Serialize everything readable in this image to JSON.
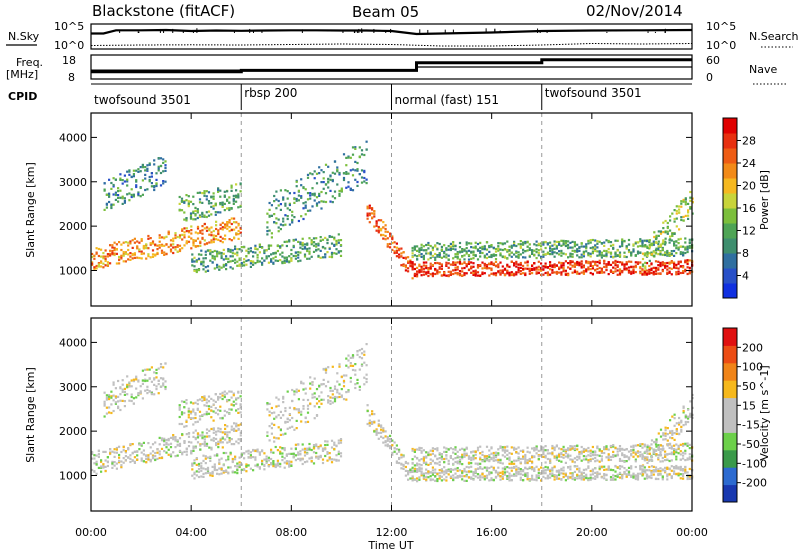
{
  "header": {
    "site": "Blackstone (fitACF)",
    "beam": "Beam 05",
    "date": "02/Nov/2014"
  },
  "panel_labels": {
    "nsky": "N.Sky",
    "nsearch": "N.Search",
    "freq_top": "Freq.",
    "freq_unit": "[MHz]",
    "nave": "Nave",
    "cpid": "CPID"
  },
  "colors": {
    "nsky_line": "#000000",
    "dash_line": "#999999"
  },
  "chart_data": [
    {
      "type": "line",
      "name": "noise-panel",
      "left_ticks": [
        "10^5",
        "10^0"
      ],
      "right_ticks": [
        "10^5",
        "10^0"
      ],
      "series": [
        {
          "name": "N.Sky",
          "x": [
            0,
            0.5,
            1,
            2,
            3,
            4,
            5,
            6,
            7,
            8,
            9,
            10,
            11,
            12,
            13,
            14,
            16,
            18,
            20,
            22,
            24
          ],
          "y": [
            0.62,
            0.62,
            0.75,
            0.75,
            0.76,
            0.72,
            0.74,
            0.73,
            0.74,
            0.75,
            0.75,
            0.74,
            0.74,
            0.72,
            0.6,
            0.62,
            0.66,
            0.72,
            0.74,
            0.75,
            0.76
          ]
        },
        {
          "name": "N.Search",
          "x": [
            0,
            2,
            4,
            6,
            8,
            10,
            12,
            14,
            16,
            18,
            20,
            22,
            24
          ],
          "y": [
            0.14,
            0.16,
            0.17,
            0.16,
            0.18,
            0.2,
            0.18,
            0.12,
            0.12,
            0.16,
            0.22,
            0.2,
            0.22
          ]
        }
      ]
    },
    {
      "type": "line",
      "name": "freq-nave-panel",
      "left_ticks": [
        "18",
        "8"
      ],
      "right_ticks": [
        "60",
        "0"
      ],
      "series": [
        {
          "name": "Freq",
          "x": [
            0,
            6,
            6,
            13,
            13,
            24
          ],
          "y": [
            0.37,
            0.37,
            0.37,
            0.37,
            0.5,
            0.5
          ]
        },
        {
          "name": "Nave",
          "x": [
            0,
            6,
            6,
            13,
            13,
            18,
            18,
            24
          ],
          "y": [
            0.3,
            0.3,
            0.36,
            0.36,
            0.68,
            0.68,
            0.8,
            0.8
          ]
        }
      ]
    },
    {
      "type": "table",
      "name": "cpid",
      "segments": [
        {
          "start": 0,
          "end": 6,
          "label": "twofsound 3501"
        },
        {
          "start": 6,
          "end": 12,
          "label": "rbsp 200"
        },
        {
          "start": 12,
          "end": 18,
          "label": "normal (fast) 151"
        },
        {
          "start": 18,
          "end": 24,
          "label": "twofsound 3501"
        }
      ]
    },
    {
      "type": "heatmap",
      "name": "power",
      "ylabel": "Slant Range [km]",
      "ylim": [
        200,
        4550
      ],
      "yticks": [
        1000,
        2000,
        3000,
        4000
      ],
      "xlim": [
        0,
        24
      ],
      "colorbar": {
        "label": "Power [dB]",
        "ticks": [
          "4",
          "8",
          "12",
          "16",
          "20",
          "24",
          "28"
        ],
        "colors": [
          "#1030e0",
          "#2850c8",
          "#2f6fa0",
          "#3e8e6e",
          "#4ea455",
          "#7cbf3c",
          "#c8d43a",
          "#f5b820",
          "#f28a18",
          "#ee5c14",
          "#e83010",
          "#e00000"
        ]
      }
    },
    {
      "type": "heatmap",
      "name": "velocity",
      "ylabel": "Slant Range [km]",
      "ylim": [
        200,
        4550
      ],
      "yticks": [
        1000,
        2000,
        3000,
        4000
      ],
      "xlim": [
        0,
        24
      ],
      "colorbar": {
        "label": "Velocity [m s^-1]",
        "ticks": [
          "200",
          "100",
          "50",
          "15",
          "-15",
          "-50",
          "-100",
          "-200"
        ],
        "colors": [
          "#1838b0",
          "#2c6ad0",
          "#3a9a4a",
          "#6cd04a",
          "#c0c0c0",
          "#c0c0c0",
          "#f6b81c",
          "#f08418",
          "#ec4c14",
          "#e01010"
        ]
      }
    }
  ],
  "xaxis": {
    "ticks": [
      "00:00",
      "04:00",
      "08:00",
      "12:00",
      "16:00",
      "20:00",
      "00:00"
    ],
    "label": "Time UT"
  }
}
